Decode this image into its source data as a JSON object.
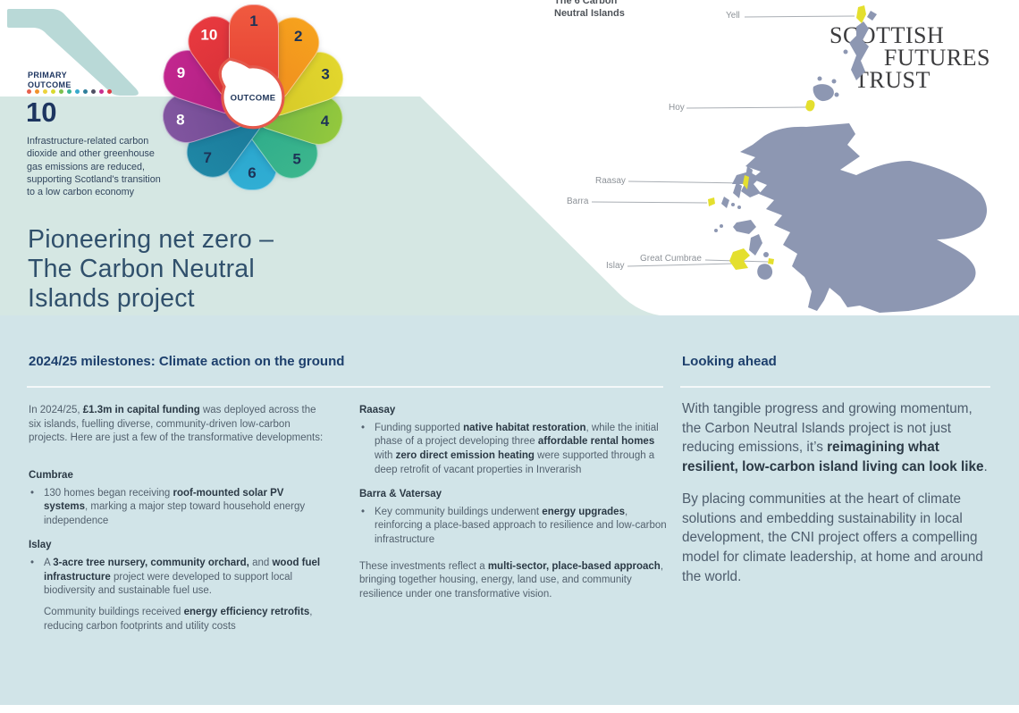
{
  "colors": {
    "band_left": "#d5e7e3",
    "band_bottom": "#d1e4e8",
    "ribbon": "#b9d9d7",
    "heading_blue": "#1d3f6c",
    "title_blue": "#30506c",
    "body_text": "#53616e",
    "body_bold": "#2b3945",
    "map_gray": "#8d97b2",
    "island_yellow": "#e4df2e",
    "label_gray": "#8d9298",
    "petal_number_dark": "#1d3357",
    "center_ring": "#e4594c"
  },
  "primary_outcome": {
    "label": "PRIMARY\nOUTCOME",
    "number": "10",
    "description": "Infrastructure-related carbon\ndioxide and other greenhouse\ngas emissions are reduced,\nsupporting Scotland's transition\nto a low carbon economy",
    "dot_colors": [
      "#e8604c",
      "#f1932c",
      "#ecd33b",
      "#d9d92f",
      "#7cc04e",
      "#3ab597",
      "#38aacd",
      "#2f7f9b",
      "#4f4f63",
      "#c9308f",
      "#e03a44"
    ]
  },
  "flower": {
    "center_label": "OUTCOME",
    "petals": [
      {
        "number": "1",
        "color": "#f05a3f",
        "color2": "#e43d33",
        "number_color": "dark"
      },
      {
        "number": "2",
        "color": "#f6a21d",
        "color2": "#ef8b1f",
        "number_color": "dark"
      },
      {
        "number": "3",
        "color": "#e2d62d",
        "color2": "#d4c728",
        "number_color": "dark"
      },
      {
        "number": "4",
        "color": "#93c83d",
        "color2": "#72b544",
        "number_color": "dark"
      },
      {
        "number": "5",
        "color": "#3cb68d",
        "color2": "#2aa98a",
        "number_color": "dark"
      },
      {
        "number": "6",
        "color": "#30aed4",
        "color2": "#27a0c8",
        "number_color": "dark"
      },
      {
        "number": "7",
        "color": "#1f87a5",
        "color2": "#1a7697",
        "number_color": "dark"
      },
      {
        "number": "8",
        "color": "#8256a0",
        "color2": "#6d4890",
        "number_color": "white"
      },
      {
        "number": "9",
        "color": "#c2268e",
        "color2": "#ab1f80",
        "number_color": "white"
      },
      {
        "number": "10",
        "color": "#e8393f",
        "color2": "#d32f36",
        "number_color": "white"
      }
    ]
  },
  "map": {
    "heading": "The 6 Carbon\nNeutral Islands",
    "labels": [
      "Yell",
      "Hoy",
      "Raasay",
      "Barra",
      "Great Cumbrae",
      "Islay"
    ]
  },
  "logo": {
    "line1": "SCOTTISH",
    "line2": "FUTURES",
    "line3": "TRUST"
  },
  "title": "Pioneering net zero –\nThe Carbon Neutral\nIslands project",
  "milestones": {
    "heading": "2024/25 milestones: Climate action on the ground",
    "intro": [
      {
        "t": "In 2024/25, ",
        "b": false
      },
      {
        "t": "£1.3m in capital funding",
        "b": true
      },
      {
        "t": " was deployed across the six islands, fuelling diverse, community-driven low-carbon projects. Here are just a few of the transformative developments:",
        "b": false
      }
    ],
    "sections": [
      {
        "heading": "Cumbrae",
        "bullets": [
          [
            {
              "t": "130 homes began receiving ",
              "b": false
            },
            {
              "t": "roof-mounted solar PV systems",
              "b": true
            },
            {
              "t": ", marking a major step toward household energy independence",
              "b": false
            }
          ]
        ]
      },
      {
        "heading": "Islay",
        "bullets": [
          [
            {
              "t": "A ",
              "b": false
            },
            {
              "t": "3-acre tree nursery, community orchard,",
              "b": true
            },
            {
              "t": " and ",
              "b": false
            },
            {
              "t": "wood fuel infrastructure",
              "b": true
            },
            {
              "t": " project were developed to support local biodiversity and sustainable fuel use.",
              "b": false
            }
          ]
        ],
        "extra": [
          {
            "t": "Community buildings received ",
            "b": false
          },
          {
            "t": "energy efficiency retrofits",
            "b": true
          },
          {
            "t": ", reducing carbon footprints and utility costs",
            "b": false
          }
        ]
      },
      {
        "heading": "Raasay",
        "bullets": [
          [
            {
              "t": "Funding supported ",
              "b": false
            },
            {
              "t": "native habitat restoration",
              "b": true
            },
            {
              "t": ", while the initial phase of a project developing three ",
              "b": false
            },
            {
              "t": "affordable rental homes",
              "b": true
            },
            {
              "t": " with ",
              "b": false
            },
            {
              "t": "zero direct emission heating",
              "b": true
            },
            {
              "t": " were supported through a deep retrofit of vacant properties in Inverarish",
              "b": false
            }
          ]
        ]
      },
      {
        "heading": "Barra & Vatersay",
        "bullets": [
          [
            {
              "t": "Key community buildings underwent ",
              "b": false
            },
            {
              "t": "energy upgrades",
              "b": true
            },
            {
              "t": ", reinforcing a place-based approach to resilience and low-carbon infrastructure",
              "b": false
            }
          ]
        ]
      }
    ],
    "closing": [
      {
        "t": "These investments reflect a ",
        "b": false
      },
      {
        "t": "multi-sector, place-based approach",
        "b": true
      },
      {
        "t": ", bringing together housing, energy, land use, and community resilience under one transformative vision.",
        "b": false
      }
    ]
  },
  "looking_ahead": {
    "heading": "Looking ahead",
    "paragraphs": [
      [
        {
          "t": "With tangible progress and growing momentum, the Carbon Neutral Islands project is not just reducing emissions, it’s ",
          "b": false
        },
        {
          "t": "reimagining what resilient, low-carbon island living can look like",
          "b": true
        },
        {
          "t": ".",
          "b": false
        }
      ],
      [
        {
          "t": "By placing communities at the heart of climate solutions and embedding sustainability in local development, the CNI project offers a compelling model for climate leadership, at home and around the world.",
          "b": false
        }
      ]
    ]
  }
}
